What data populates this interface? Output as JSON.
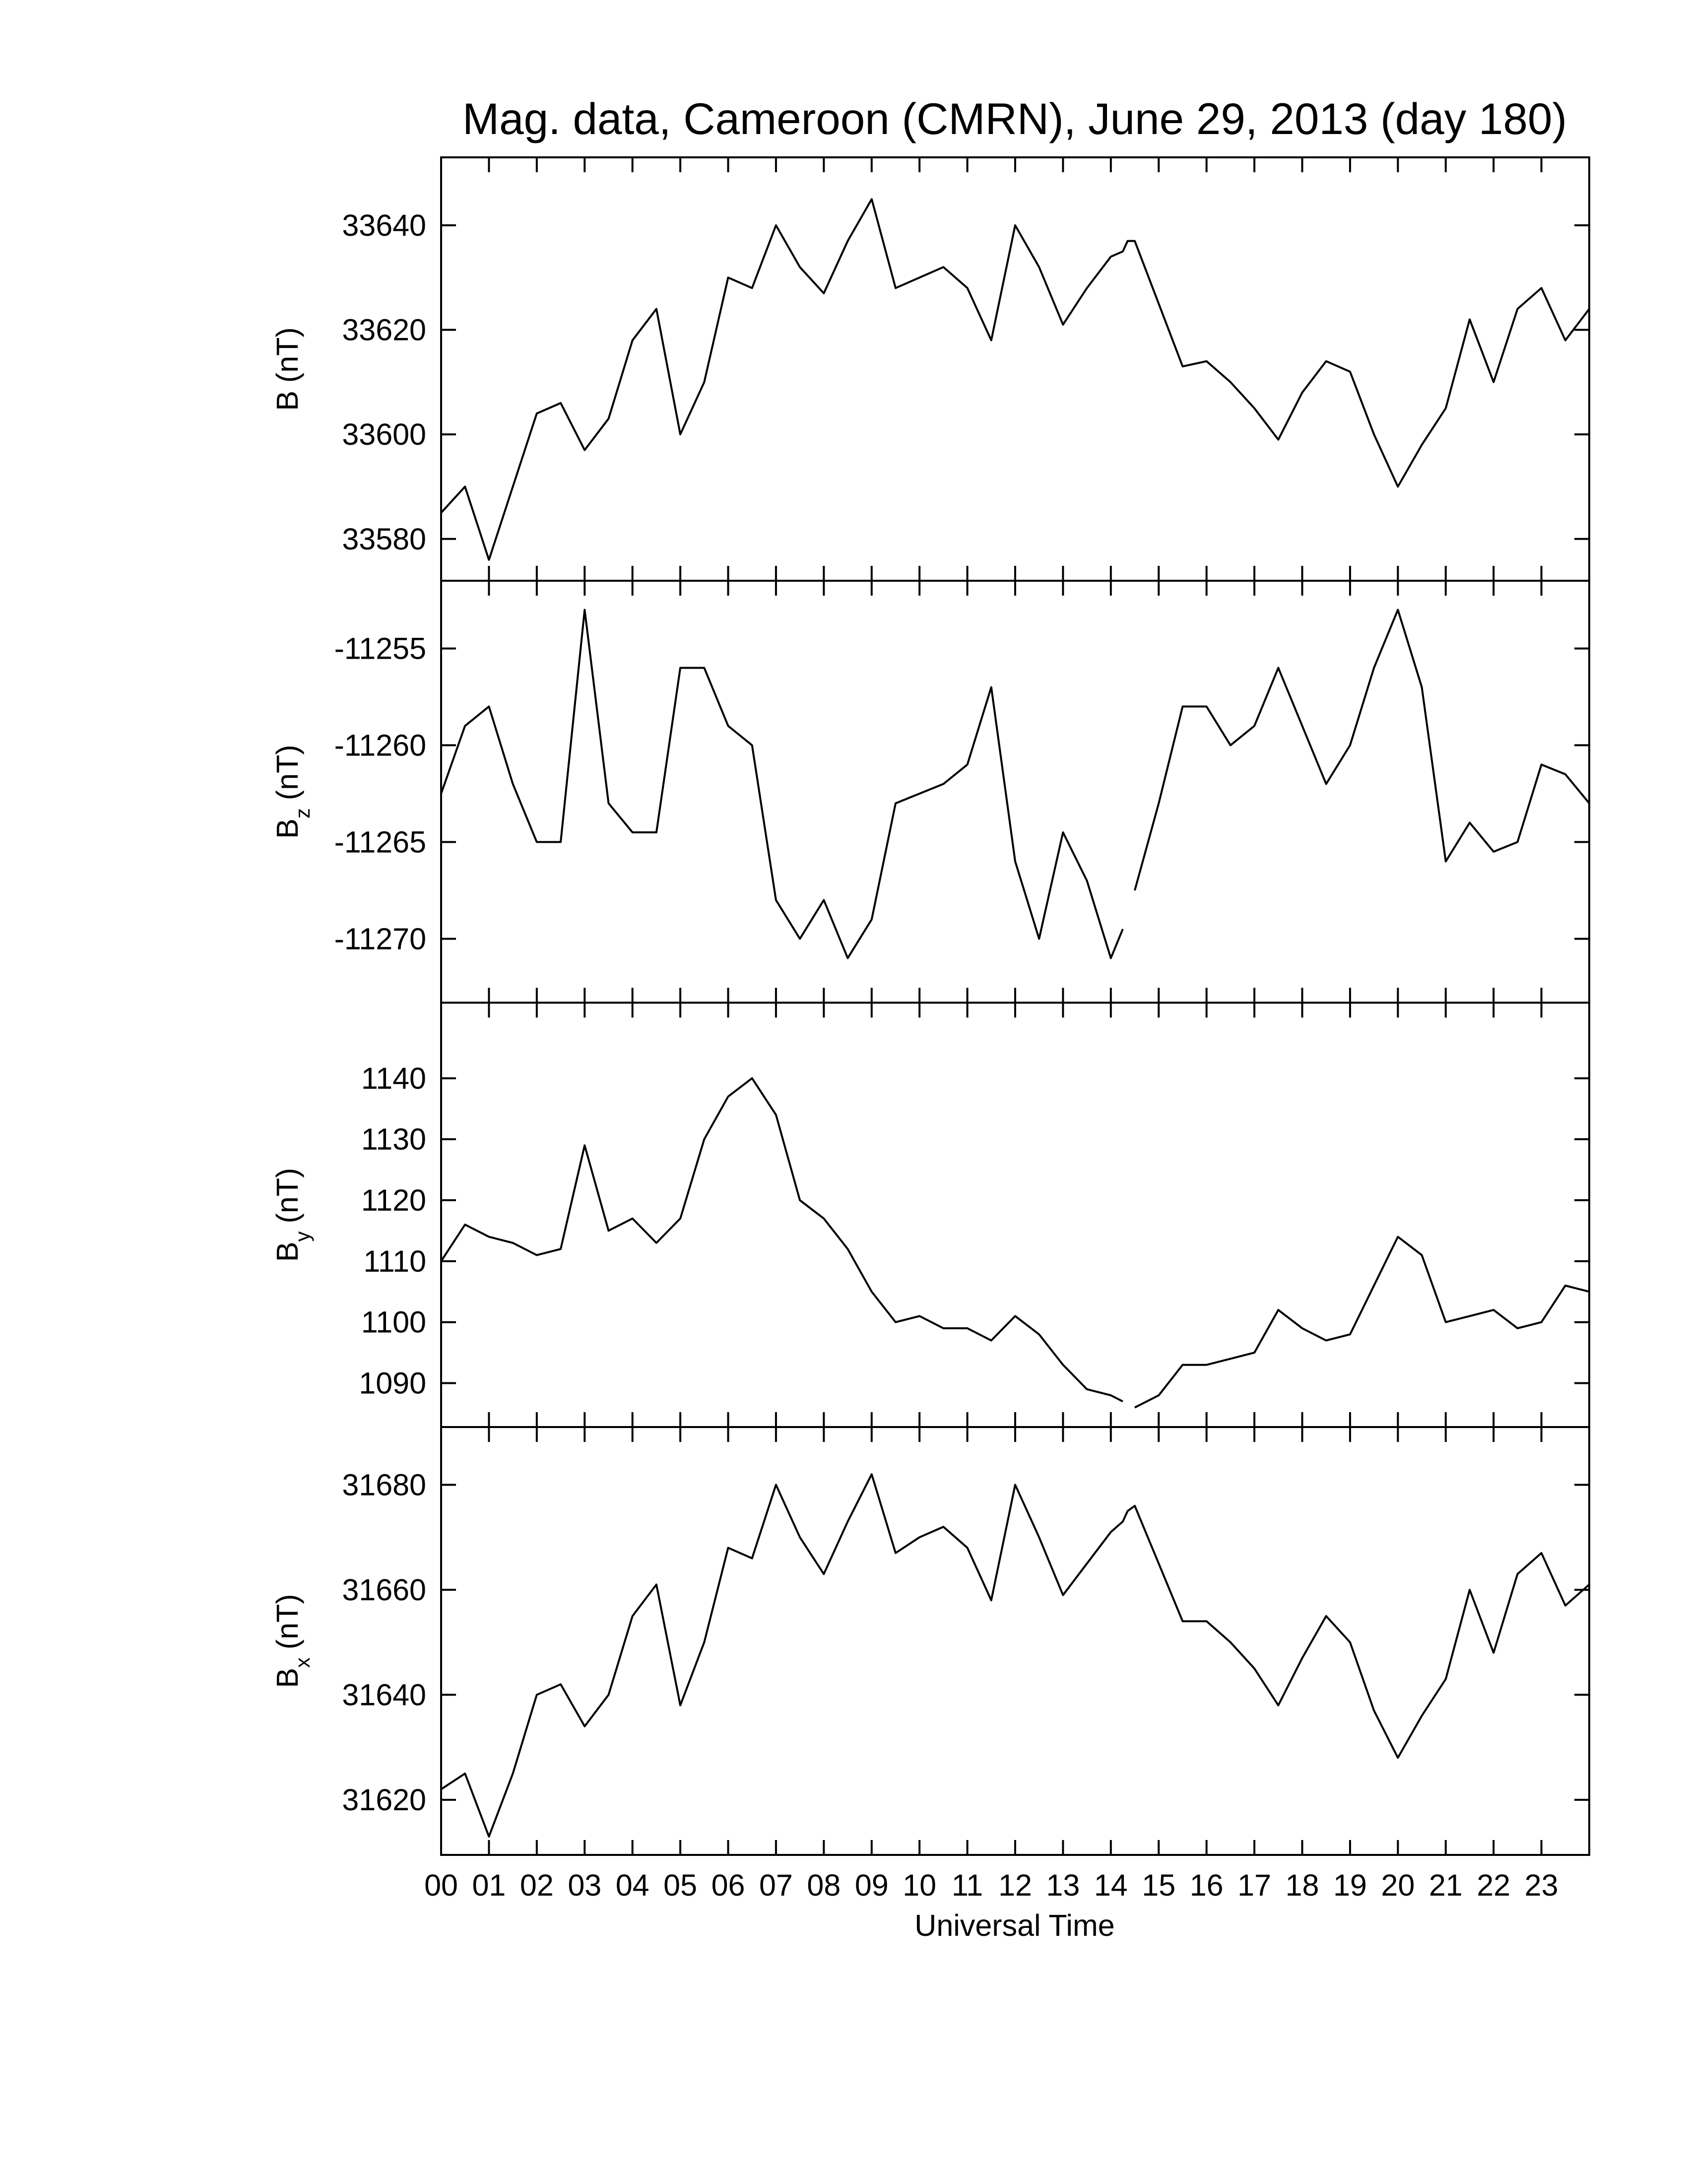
{
  "chart_data": [
    {
      "type": "line",
      "title": "Mag. data, Cameroon (CMRN), June 29, 2013 (day 180)",
      "ylabel": {
        "main": "B",
        "unit": "(nT)"
      },
      "color": "#000000",
      "x": [
        0,
        0.5,
        1,
        1.5,
        2,
        2.5,
        3,
        3.5,
        4,
        4.5,
        5,
        5.5,
        6,
        6.5,
        7,
        7.5,
        8,
        8.5,
        9,
        9.5,
        10,
        10.5,
        11,
        11.5,
        12,
        12.5,
        13,
        13.5,
        14,
        14.25,
        14.35,
        14.5,
        15,
        15.5,
        16,
        16.5,
        17,
        17.5,
        18,
        18.5,
        19,
        19.5,
        20,
        20.5,
        21,
        21.5,
        22,
        22.5,
        23,
        23.5,
        24
      ],
      "values": [
        33585,
        33590,
        33576,
        33590,
        33604,
        33606,
        33597,
        33603,
        33618,
        33624,
        33600,
        33610,
        33630,
        33628,
        33640,
        33632,
        33627,
        33637,
        33645,
        33628,
        33630,
        33632,
        33628,
        33618,
        33640,
        33632,
        33621,
        33628,
        33634,
        33635,
        33637,
        33637,
        33625,
        33613,
        33614,
        33610,
        33605,
        33599,
        33608,
        33614,
        33612,
        33600,
        33590,
        33598,
        33605,
        33622,
        33610,
        33624,
        33628,
        33618,
        33624
      ],
      "xlim": [
        0,
        24
      ],
      "ylim": [
        33572,
        33653
      ],
      "yticks": [
        33580,
        33600,
        33620,
        33640
      ]
    },
    {
      "type": "line",
      "ylabel": {
        "main": "B",
        "sub": "z",
        "unit": "(nT)"
      },
      "color": "#000000",
      "x": [
        0,
        0.5,
        1,
        1.5,
        2,
        2.5,
        3,
        3.5,
        4,
        4.5,
        5,
        5.5,
        6,
        6.5,
        7,
        7.5,
        8,
        8.5,
        9,
        9.5,
        10,
        10.5,
        11,
        11.5,
        12,
        12.5,
        13,
        13.5,
        14,
        14.25,
        14.35,
        14.5,
        15,
        15.5,
        16,
        16.5,
        17,
        17.5,
        18,
        18.5,
        19,
        19.5,
        20,
        20.5,
        21,
        21.5,
        22,
        22.5,
        23,
        23.5,
        24
      ],
      "values": [
        -11262.5,
        -11259,
        -11258,
        -11262,
        -11265,
        -11265,
        -11253,
        -11263,
        -11264.5,
        -11264.5,
        -11256,
        -11256,
        -11259,
        -11260,
        -11268,
        -11270,
        -11268,
        -11271,
        -11269,
        -11263,
        -11262.5,
        -11262,
        -11261,
        -11257,
        -11266,
        -11270,
        -11264.5,
        -11267,
        -11271,
        -11269.5,
        null,
        -11267.5,
        -11263,
        -11258,
        -11258,
        -11260,
        -11259,
        -11256,
        -11259,
        -11262,
        -11260,
        -11256,
        -11253,
        -11257,
        -11266,
        -11264,
        -11265.5,
        -11265,
        -11261,
        -11261.5,
        -11263
      ],
      "xlim": [
        0,
        24
      ],
      "ylim": [
        -11273.3,
        -11251.5
      ],
      "yticks": [
        -11270,
        -11265,
        -11260,
        -11255
      ]
    },
    {
      "type": "line",
      "ylabel": {
        "main": "B",
        "sub": "y",
        "unit": "(nT)"
      },
      "color": "#000000",
      "x": [
        0,
        0.5,
        1,
        1.5,
        2,
        2.5,
        3,
        3.5,
        4,
        4.5,
        5,
        5.5,
        6,
        6.5,
        7,
        7.5,
        8,
        8.5,
        9,
        9.5,
        10,
        10.5,
        11,
        11.5,
        12,
        12.5,
        13,
        13.5,
        14,
        14.25,
        14.35,
        14.5,
        15,
        15.5,
        16,
        16.5,
        17,
        17.5,
        18,
        18.5,
        19,
        19.5,
        20,
        20.5,
        21,
        21.5,
        22,
        22.5,
        23,
        23.5,
        24
      ],
      "values": [
        1110,
        1116,
        1114,
        1113,
        1111,
        1112,
        1129,
        1115,
        1117,
        1113,
        1117,
        1130,
        1137,
        1140,
        1134,
        1120,
        1117,
        1112,
        1105,
        1100,
        1101,
        1099,
        1099,
        1097,
        1101,
        1098,
        1093,
        1089,
        1088,
        1087,
        null,
        1086,
        1088,
        1093,
        1093,
        1094,
        1095,
        1102,
        1099,
        1097,
        1098,
        1106,
        1114,
        1111,
        1100,
        1101,
        1102,
        1099,
        1100,
        1106,
        1105
      ],
      "xlim": [
        0,
        24
      ],
      "ylim": [
        1082.8,
        1152.4
      ],
      "yticks": [
        1090,
        1100,
        1110,
        1120,
        1130,
        1140
      ]
    },
    {
      "type": "line",
      "ylabel": {
        "main": "B",
        "sub": "x",
        "unit": "(nT)"
      },
      "xlabel": "Universal Time",
      "color": "#000000",
      "x": [
        0,
        0.5,
        1,
        1.5,
        2,
        2.5,
        3,
        3.5,
        4,
        4.5,
        5,
        5.5,
        6,
        6.5,
        7,
        7.5,
        8,
        8.5,
        9,
        9.5,
        10,
        10.5,
        11,
        11.5,
        12,
        12.5,
        13,
        13.5,
        14,
        14.25,
        14.35,
        14.5,
        15,
        15.5,
        16,
        16.5,
        17,
        17.5,
        18,
        18.5,
        19,
        19.5,
        20,
        20.5,
        21,
        21.5,
        22,
        22.5,
        23,
        23.5,
        24
      ],
      "values": [
        31622,
        31625,
        31613,
        31625,
        31640,
        31642,
        31634,
        31640,
        31655,
        31661,
        31638,
        31650,
        31668,
        31666,
        31680,
        31670,
        31663,
        31673,
        31682,
        31667,
        31670,
        31672,
        31668,
        31658,
        31680,
        31670,
        31659,
        31665,
        31671,
        31673,
        31675,
        31676,
        31665,
        31654,
        31654,
        31650,
        31645,
        31638,
        31647,
        31655,
        31650,
        31637,
        31628,
        31636,
        31643,
        31660,
        31648,
        31663,
        31667,
        31657,
        31661
      ],
      "xlim": [
        0,
        24
      ],
      "ylim": [
        31609.5,
        31691
      ],
      "yticks": [
        31620,
        31640,
        31660,
        31680
      ],
      "xticks": [
        {
          "value": 0,
          "label": "00"
        },
        {
          "value": 1,
          "label": "01"
        },
        {
          "value": 2,
          "label": "02"
        },
        {
          "value": 3,
          "label": "03"
        },
        {
          "value": 4,
          "label": "04"
        },
        {
          "value": 5,
          "label": "05"
        },
        {
          "value": 6,
          "label": "06"
        },
        {
          "value": 7,
          "label": "07"
        },
        {
          "value": 8,
          "label": "08"
        },
        {
          "value": 9,
          "label": "09"
        },
        {
          "value": 10,
          "label": "10"
        },
        {
          "value": 11,
          "label": "11"
        },
        {
          "value": 12,
          "label": "12"
        },
        {
          "value": 13,
          "label": "13"
        },
        {
          "value": 14,
          "label": "14"
        },
        {
          "value": 15,
          "label": "15"
        },
        {
          "value": 16,
          "label": "16"
        },
        {
          "value": 17,
          "label": "17"
        },
        {
          "value": 18,
          "label": "18"
        },
        {
          "value": 19,
          "label": "19"
        },
        {
          "value": 20,
          "label": "20"
        },
        {
          "value": 21,
          "label": "21"
        },
        {
          "value": 22,
          "label": "22"
        },
        {
          "value": 23,
          "label": "23"
        }
      ]
    }
  ]
}
